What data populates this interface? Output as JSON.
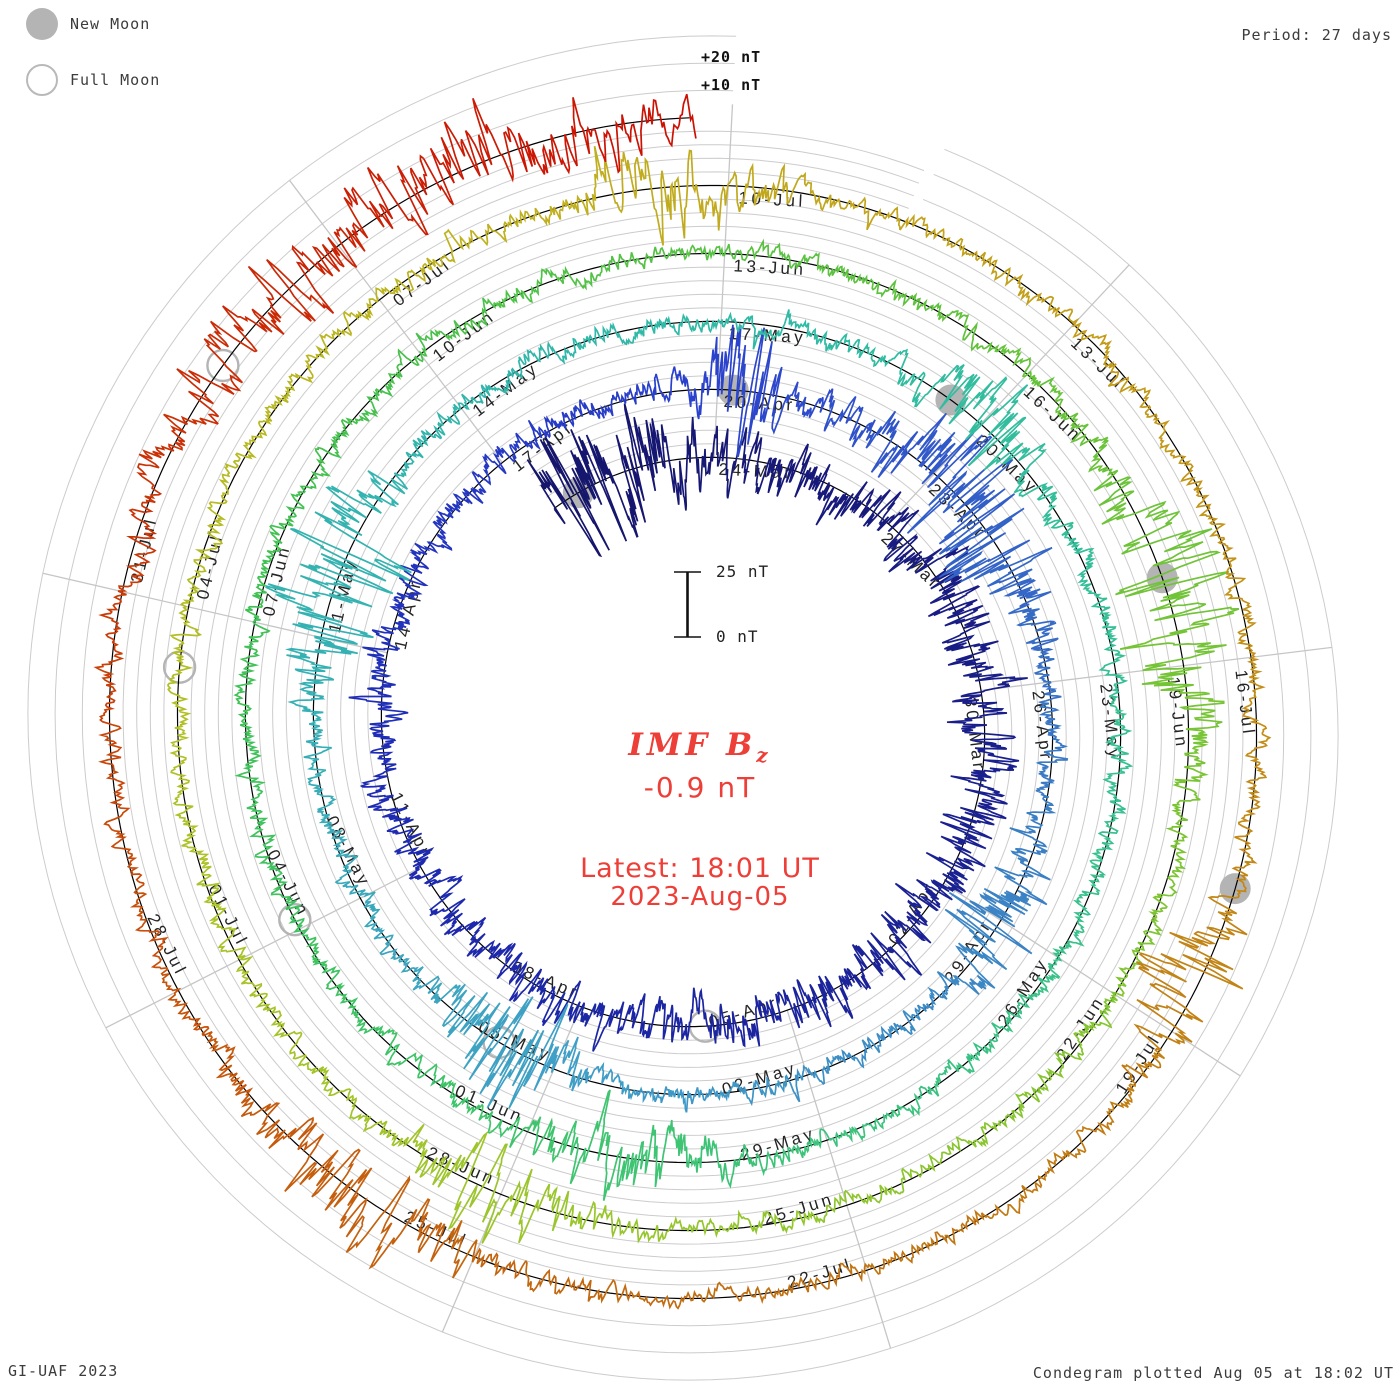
{
  "legend": {
    "new_moon": "New Moon",
    "full_moon": "Full Moon"
  },
  "header": {
    "period_label": "Period: 27 days"
  },
  "footer": {
    "credit": "GI-UAF 2023",
    "plotted": "Condegram plotted Aug 05 at 18:02 UT"
  },
  "radial_scale": {
    "plus20": "+20 nT",
    "plus10": "+10 nT"
  },
  "scale_bar": {
    "top_label": "25 nT",
    "bottom_label": "0 nT"
  },
  "center": {
    "param_prefix": "IMF B",
    "param_sub": "z",
    "value": "-0.9 nT",
    "latest_line1": "Latest: 18:01 UT",
    "latest_line2": "2023-Aug-05"
  },
  "chart_data": {
    "type": "line",
    "subtype": "polar-spiral-condegram",
    "title": "IMF Bz condegram",
    "parameter": "IMF Bz",
    "units": "nT",
    "latest_value_nT": -0.9,
    "latest_time_label": "Latest: 18:01 UT 2023-Aug-05",
    "period_days": 27,
    "label_step_days": 3,
    "gridline_step_nT": 5,
    "outer_gridline_step_nT": 10,
    "scale_bar_nT": [
      0,
      25
    ],
    "trace_nT_range": [
      -24,
      24
    ],
    "colors": {
      "grid": "#cccccc",
      "spoke": "#c6c6c6",
      "baseline": "#000000",
      "moon": "#b4b4b4",
      "label_text": "#242424",
      "annotation_red": "#ee3e38"
    },
    "date_labels": [
      {
        "label": "24-Mar",
        "day": 0
      },
      {
        "label": "27-Mar",
        "day": 3
      },
      {
        "label": "30-Mar",
        "day": 6
      },
      {
        "label": "02-Apr",
        "day": 9
      },
      {
        "label": "05-Apr",
        "day": 12
      },
      {
        "label": "08-Apr",
        "day": 15
      },
      {
        "label": "11-Apr",
        "day": 18
      },
      {
        "label": "14-Apr",
        "day": 21
      },
      {
        "label": "17-Apr",
        "day": 24
      },
      {
        "label": "20-Apr",
        "day": 27
      },
      {
        "label": "23-Apr",
        "day": 30
      },
      {
        "label": "26-Apr",
        "day": 33
      },
      {
        "label": "29-Apr",
        "day": 36
      },
      {
        "label": "02-May",
        "day": 39
      },
      {
        "label": "05-May",
        "day": 42
      },
      {
        "label": "08-May",
        "day": 45
      },
      {
        "label": "11-May",
        "day": 48
      },
      {
        "label": "14-May",
        "day": 51
      },
      {
        "label": "17-May",
        "day": 54
      },
      {
        "label": "20-May",
        "day": 57
      },
      {
        "label": "23-May",
        "day": 60
      },
      {
        "label": "26-May",
        "day": 63
      },
      {
        "label": "29-May",
        "day": 66
      },
      {
        "label": "01-Jun",
        "day": 69
      },
      {
        "label": "04-Jun",
        "day": 72
      },
      {
        "label": "07-Jun",
        "day": 75
      },
      {
        "label": "10-Jun",
        "day": 78
      },
      {
        "label": "13-Jun",
        "day": 81
      },
      {
        "label": "16-Jun",
        "day": 84
      },
      {
        "label": "19-Jun",
        "day": 87
      },
      {
        "label": "22-Jun",
        "day": 90
      },
      {
        "label": "25-Jun",
        "day": 93
      },
      {
        "label": "28-Jun",
        "day": 96
      },
      {
        "label": "01-Jul",
        "day": 99
      },
      {
        "label": "04-Jul",
        "day": 102
      },
      {
        "label": "07-Jul",
        "day": 105
      },
      {
        "label": "10-Jul",
        "day": 108
      },
      {
        "label": "13-Jul",
        "day": 111
      },
      {
        "label": "16-Jul",
        "day": 114
      },
      {
        "label": "19-Jul",
        "day": 117
      },
      {
        "label": "22-Jul",
        "day": 120
      },
      {
        "label": "25-Jul",
        "day": 123
      },
      {
        "label": "28-Jul",
        "day": 126
      },
      {
        "label": "31-Jul",
        "day": 129
      }
    ],
    "moons": [
      {
        "type": "new",
        "day": -2.3
      },
      {
        "type": "new",
        "day": 27.2
      },
      {
        "type": "new",
        "day": 56.6
      },
      {
        "type": "new",
        "day": 86.2
      },
      {
        "type": "new",
        "day": 115.8
      },
      {
        "type": "full",
        "day": 13.2
      },
      {
        "type": "full",
        "day": 42.7
      },
      {
        "type": "full",
        "day": 72.1
      },
      {
        "type": "full",
        "day": 101.5
      },
      {
        "type": "full",
        "day": 130.8
      }
    ],
    "color_stops": [
      {
        "f": 0.0,
        "c": "#15156b"
      },
      {
        "f": 0.16,
        "c": "#1e2bb4"
      },
      {
        "f": 0.215,
        "c": "#2a41cc"
      },
      {
        "f": 0.27,
        "c": "#3a7cc4"
      },
      {
        "f": 0.325,
        "c": "#3f9fc6"
      },
      {
        "f": 0.37,
        "c": "#34b2b2"
      },
      {
        "f": 0.42,
        "c": "#2fbba4"
      },
      {
        "f": 0.47,
        "c": "#38c18f"
      },
      {
        "f": 0.52,
        "c": "#3fc46e"
      },
      {
        "f": 0.57,
        "c": "#40c152"
      },
      {
        "f": 0.62,
        "c": "#5ec23f"
      },
      {
        "f": 0.66,
        "c": "#79c433"
      },
      {
        "f": 0.71,
        "c": "#97c62c"
      },
      {
        "f": 0.75,
        "c": "#aec226"
      },
      {
        "f": 0.79,
        "c": "#bfb21f"
      },
      {
        "f": 0.83,
        "c": "#c49c19"
      },
      {
        "f": 0.87,
        "c": "#c28114"
      },
      {
        "f": 0.905,
        "c": "#c16c10"
      },
      {
        "f": 0.94,
        "c": "#c8500a"
      },
      {
        "f": 0.97,
        "c": "#cb2d06"
      },
      {
        "f": 1.0,
        "c": "#cc0f03"
      }
    ],
    "noise_events": [
      {
        "day": -2,
        "width": 2,
        "amp": 13
      },
      {
        "day": 6,
        "width": 22,
        "amp": 4.5
      },
      {
        "day": 27.3,
        "width": 0.7,
        "amp": 18
      },
      {
        "day": 30.5,
        "width": 2.2,
        "amp": 13
      },
      {
        "day": 36,
        "width": 1.2,
        "amp": 9
      },
      {
        "day": 42.6,
        "width": 1.1,
        "amp": 15
      },
      {
        "day": 48.6,
        "width": 1.6,
        "amp": 12
      },
      {
        "day": 57,
        "width": 1.1,
        "amp": 9
      },
      {
        "day": 68,
        "width": 1.4,
        "amp": 9
      },
      {
        "day": 86.5,
        "width": 1.8,
        "amp": 11
      },
      {
        "day": 96,
        "width": 1.2,
        "amp": 8
      },
      {
        "day": 107.6,
        "width": 1.1,
        "amp": 9
      },
      {
        "day": 116.6,
        "width": 0.9,
        "amp": 10
      },
      {
        "day": 124,
        "width": 1.6,
        "amp": 9
      },
      {
        "day": 132.5,
        "width": 3.5,
        "amp": 9
      }
    ]
  }
}
